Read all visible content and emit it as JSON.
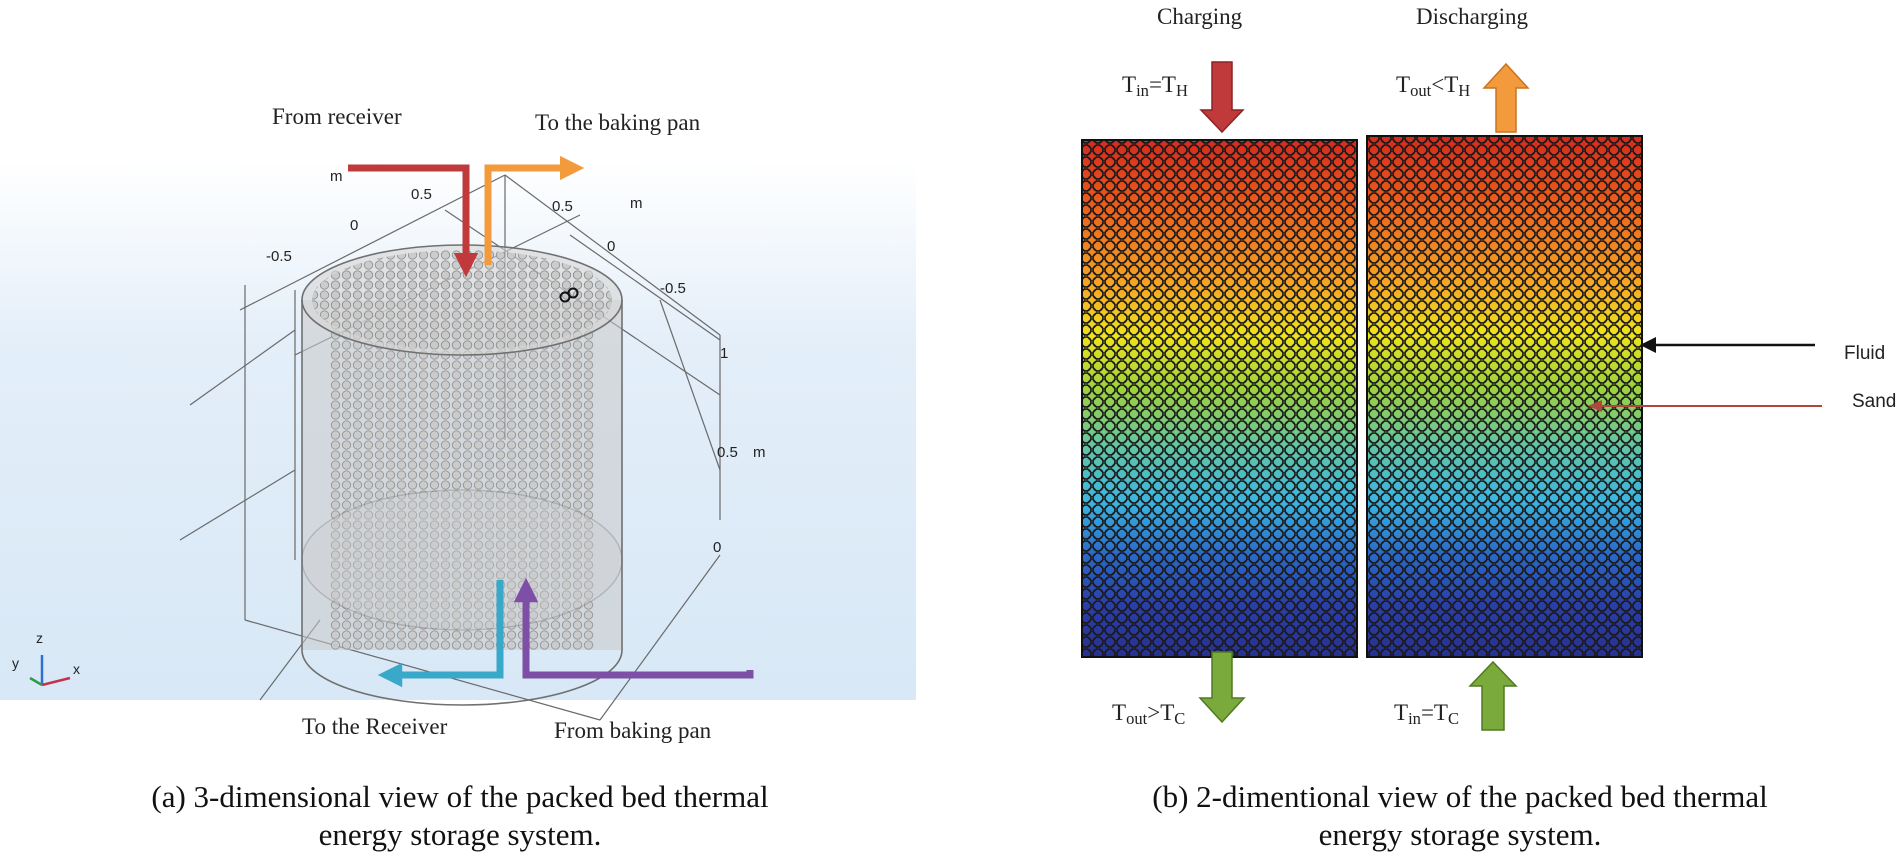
{
  "panel_a": {
    "labels": {
      "from_receiver": "From receiver",
      "to_baking_pan": "To the baking pan",
      "to_receiver": "To the Receiver",
      "from_baking_pan": "From baking pan"
    },
    "axis_ticks": {
      "m_top_left": "m",
      "tick_05_top": "0.5",
      "tick_0_top": "0",
      "tick_n05_left": "-0.5",
      "tick_05_right": "0.5",
      "m_top_right": "m",
      "tick_0_right": "0",
      "tick_n05_right": "-0.5",
      "tick_1_z": "1",
      "tick_05_z": "0.5",
      "m_z": "m",
      "tick_0_z": "0"
    },
    "triad": {
      "z": "z",
      "y": "y",
      "x": "x"
    },
    "caption_line1": "(a) 3-dimensional view of the packed bed thermal",
    "caption_line2": "energy storage system.",
    "colors": {
      "hot_in": "#c0393b",
      "hot_out": "#f39a3c",
      "cold_out": "#3aa9c9",
      "cold_in": "#7d4fa6"
    }
  },
  "panel_b": {
    "charging": "Charging",
    "discharging": "Discharging",
    "t_in_charging": {
      "base": "T",
      "sub": "in",
      "rel": "=",
      "base2": "T",
      "sub2": "H"
    },
    "t_out_discharging": {
      "base": "T",
      "sub": "out",
      "rel": "<",
      "base2": "T",
      "sub2": "H"
    },
    "t_out_charging": {
      "base": "T",
      "sub": "out",
      "rel": ">",
      "base2": "T",
      "sub2": "C"
    },
    "t_in_discharging": {
      "base": "T",
      "sub": "in",
      "rel": "=",
      "base2": "T",
      "sub2": "C"
    },
    "fluid": "Fluid",
    "sand": "Sand",
    "caption_line1": "(b) 2-dimentional view of the packed bed thermal",
    "caption_line2": "energy storage system.",
    "colors": {
      "hot": "#d42a1e",
      "mid": "#e8e81a",
      "cold": "#27318f",
      "down_arrow": "#c0393b",
      "up_arrow": "#f39a3c",
      "green_arrow": "#7aaa3c"
    }
  }
}
